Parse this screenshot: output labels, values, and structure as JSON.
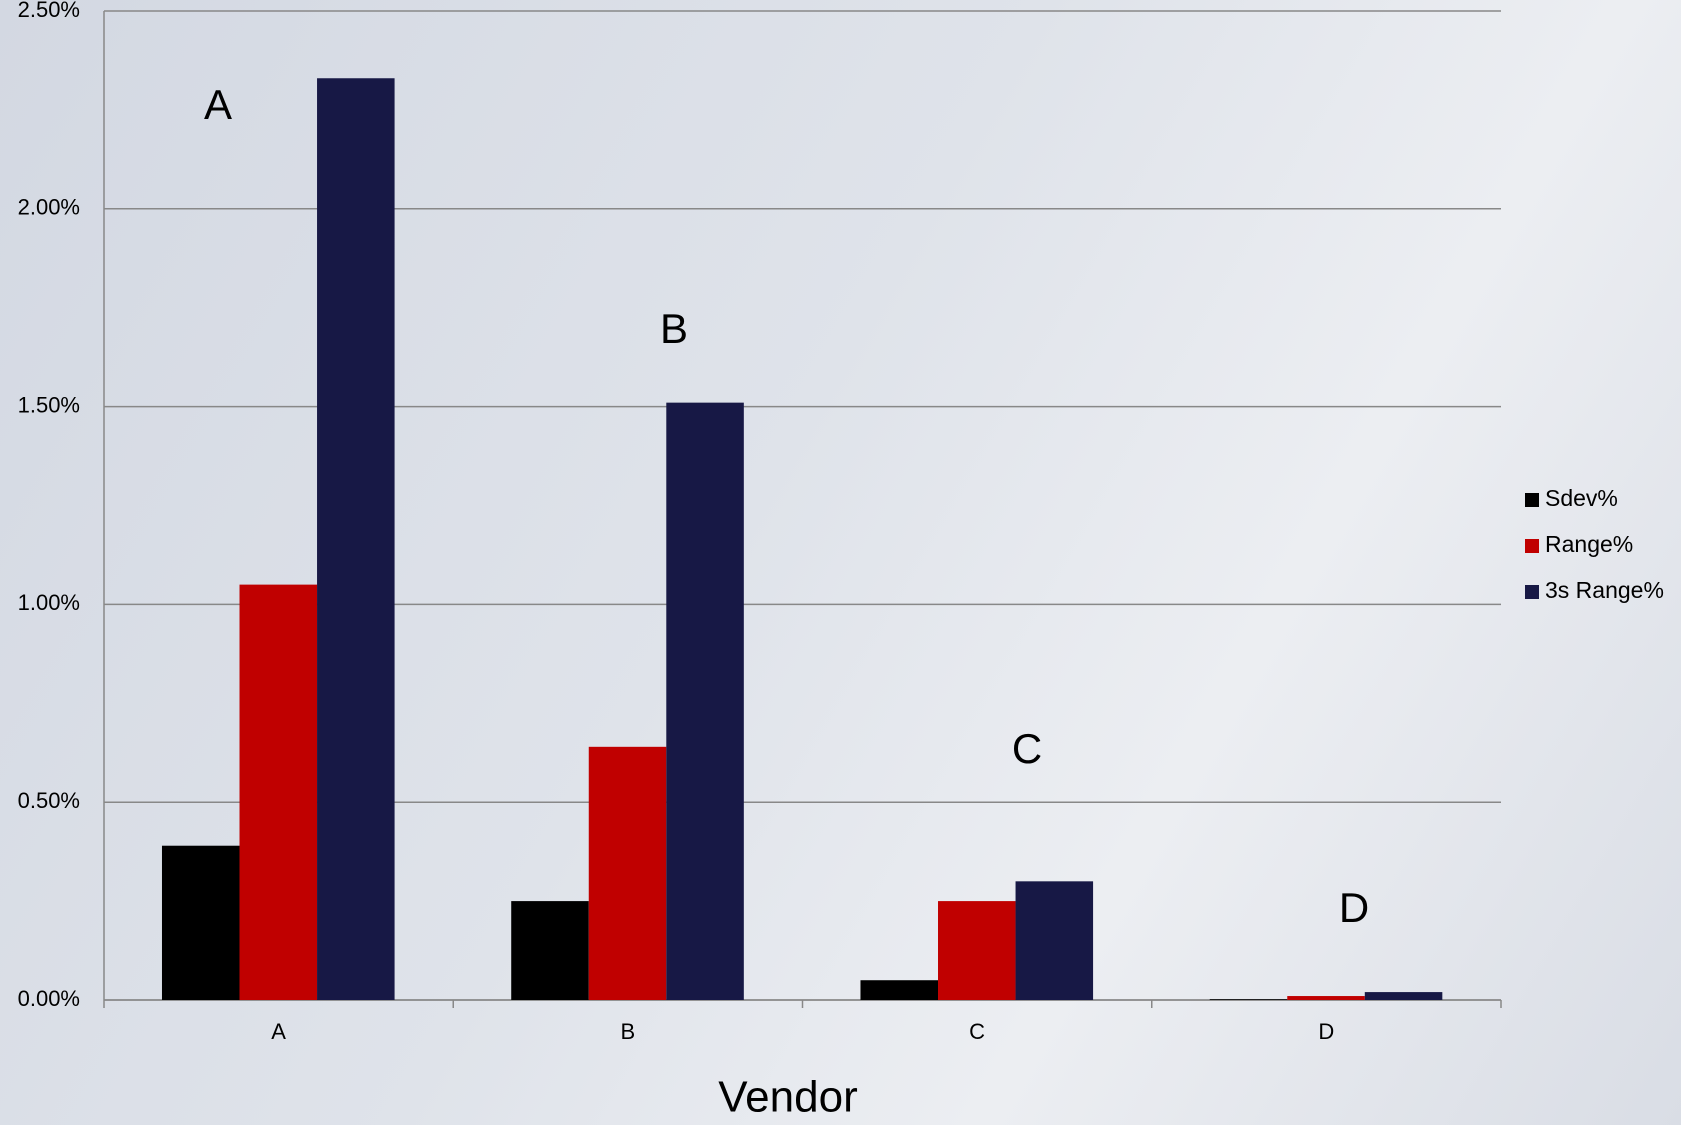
{
  "chart_data": {
    "type": "bar",
    "x_label": "Vendor",
    "categories": [
      "A",
      "B",
      "C",
      "D"
    ],
    "series": [
      {
        "name": "Sdev%",
        "color": "#000000",
        "values": [
          0.39,
          0.25,
          0.05,
          0.002
        ]
      },
      {
        "name": "Range%",
        "color": "#c00000",
        "values": [
          1.05,
          0.64,
          0.25,
          0.01
        ]
      },
      {
        "name": "3s Range%",
        "color": "#171845",
        "values": [
          2.33,
          1.51,
          0.3,
          0.02
        ]
      }
    ],
    "ylim": [
      0,
      2.5
    ],
    "yticks": [
      {
        "value": 0,
        "label": "0.00%"
      },
      {
        "value": 0.5,
        "label": "0.50%"
      },
      {
        "value": 1,
        "label": "1.00%"
      },
      {
        "value": 1.5,
        "label": "1.50%"
      },
      {
        "value": 2,
        "label": "2.00%"
      },
      {
        "value": 2.5,
        "label": "2.50%"
      }
    ],
    "grid": true,
    "legend": "right",
    "annotations": [
      "A",
      "B",
      "C",
      "D"
    ]
  }
}
